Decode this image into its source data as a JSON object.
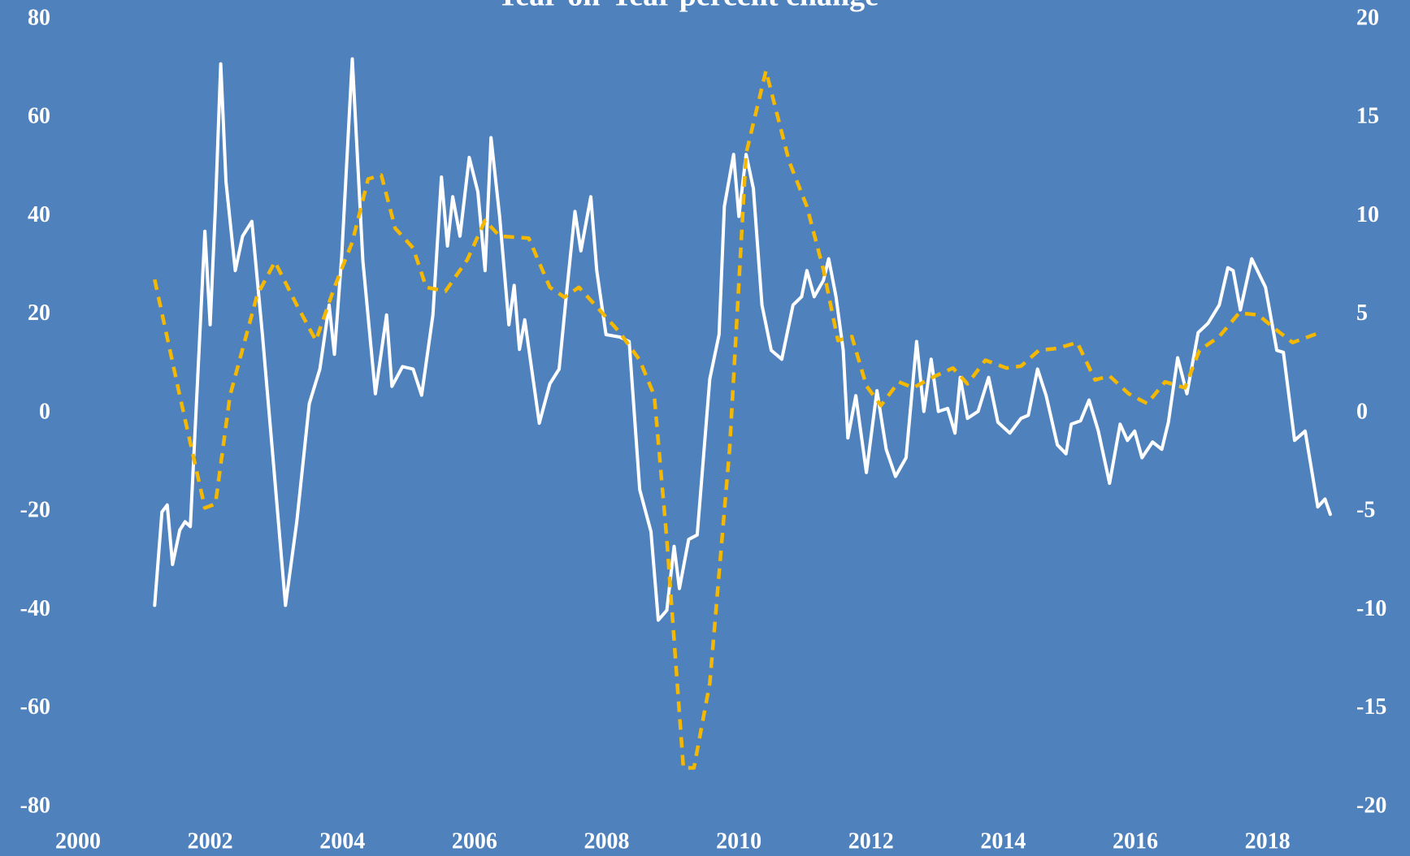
{
  "chart_data": {
    "type": "line",
    "title": "Year-on-Year percent change",
    "xlim": [
      2000,
      2019
    ],
    "xticks": [
      2000,
      2002,
      2004,
      2006,
      2008,
      2010,
      2012,
      2014,
      2016,
      2018
    ],
    "ylim": [
      -80,
      80
    ],
    "yticks": [
      -80,
      -60,
      -40,
      -20,
      0,
      20,
      40,
      60,
      80
    ],
    "y2lim": [
      -20,
      20
    ],
    "y2ticks": [
      -20,
      -15,
      -10,
      -5,
      0,
      5,
      10,
      15,
      20
    ],
    "grid": false,
    "series": [
      {
        "color": "#ffffff",
        "dash": false,
        "axis": "y",
        "x": [
          2001.16,
          2001.27,
          2001.35,
          2001.43,
          2001.54,
          2001.62,
          2001.7,
          2001.81,
          2001.92,
          2002.0,
          2002.08,
          2002.16,
          2002.24,
          2002.38,
          2002.49,
          2002.63,
          2002.79,
          2002.95,
          2003.14,
          2003.31,
          2003.5,
          2003.66,
          2003.8,
          2003.88,
          2003.99,
          2004.15,
          2004.31,
          2004.5,
          2004.67,
          2004.75,
          2004.91,
          2005.07,
          2005.2,
          2005.37,
          2005.5,
          2005.59,
          2005.67,
          2005.78,
          2005.92,
          2006.05,
          2006.16,
          2006.25,
          2006.38,
          2006.52,
          2006.6,
          2006.68,
          2006.76,
          2006.98,
          2007.14,
          2007.28,
          2007.39,
          2007.52,
          2007.61,
          2007.76,
          2007.85,
          2007.99,
          2008.2,
          2008.34,
          2008.5,
          2008.67,
          2008.78,
          2008.91,
          2009.02,
          2009.1,
          2009.24,
          2009.37,
          2009.56,
          2009.7,
          2009.78,
          2009.92,
          2010.0,
          2010.11,
          2010.22,
          2010.35,
          2010.49,
          2010.65,
          2010.82,
          2010.95,
          2011.03,
          2011.14,
          2011.28,
          2011.36,
          2011.47,
          2011.58,
          2011.65,
          2011.77,
          2011.93,
          2012.09,
          2012.23,
          2012.37,
          2012.53,
          2012.69,
          2012.8,
          2012.91,
          2013.02,
          2013.16,
          2013.27,
          2013.35,
          2013.46,
          2013.62,
          2013.78,
          2013.92,
          2014.1,
          2014.27,
          2014.38,
          2014.52,
          2014.65,
          2014.82,
          2014.95,
          2015.03,
          2015.17,
          2015.3,
          2015.44,
          2015.61,
          2015.77,
          2015.88,
          2015.99,
          2016.1,
          2016.26,
          2016.4,
          2016.5,
          2016.64,
          2016.78,
          2016.95,
          2017.1,
          2017.27,
          2017.4,
          2017.48,
          2017.59,
          2017.76,
          2017.97,
          2018.14,
          2018.24,
          2018.41,
          2018.57,
          2018.76,
          2018.87,
          2018.95
        ],
        "values": [
          -39,
          -20,
          -18.6,
          -30.7,
          -23.7,
          -22,
          -23,
          7,
          37,
          18,
          42,
          71,
          47,
          29,
          36,
          39,
          16,
          -9,
          -39,
          -22,
          2,
          9,
          22,
          12,
          32,
          72,
          31,
          4,
          20,
          5.5,
          9.5,
          9,
          3.7,
          20,
          48,
          34,
          44,
          36,
          52,
          45,
          29,
          56,
          40,
          18,
          26,
          13,
          19,
          -2,
          6,
          9,
          24,
          41,
          33,
          44,
          29,
          16,
          15.5,
          14.6,
          -15.5,
          -24,
          -42,
          -40,
          -27,
          -35.6,
          -25.6,
          -24.7,
          7,
          16,
          42,
          52.6,
          40,
          52.6,
          45.7,
          22,
          12.8,
          11,
          22,
          23.7,
          29,
          23.7,
          27,
          31.4,
          23.7,
          12.8,
          -5,
          3.6,
          -12,
          4.6,
          -7.3,
          -12.8,
          -9,
          14.6,
          0.4,
          11,
          0.4,
          1,
          -4,
          7.3,
          -1,
          0.4,
          7.3,
          -1.8,
          -4,
          -1,
          -0.4,
          9,
          3.6,
          -6.4,
          -8.2,
          -2.2,
          -1.5,
          2.7,
          -3.6,
          -14.2,
          -2.2,
          -5.5,
          -3.6,
          -9,
          -5.8,
          -7.3,
          -1.8,
          11.3,
          4,
          16.4,
          18.3,
          22,
          29.6,
          29,
          21,
          31.4,
          25.6,
          12.8,
          12.4,
          -5.5,
          -3.6,
          -19,
          -17.4,
          -20.5
        ]
      },
      {
        "color": "#f5b800",
        "dash": true,
        "axis": "y2",
        "x": [
          2001.16,
          2001.54,
          2001.92,
          2002.08,
          2002.3,
          2002.71,
          2002.98,
          2003.31,
          2003.6,
          2003.88,
          2004.15,
          2004.39,
          2004.59,
          2004.8,
          2005.07,
          2005.27,
          2005.56,
          2005.89,
          2006.16,
          2006.38,
          2006.82,
          2007.14,
          2007.36,
          2007.58,
          2007.88,
          2008.2,
          2008.5,
          2008.72,
          2008.91,
          2009.16,
          2009.32,
          2009.56,
          2009.86,
          2010.11,
          2010.41,
          2010.76,
          2011.03,
          2011.28,
          2011.5,
          2011.71,
          2011.93,
          2012.15,
          2012.42,
          2012.64,
          2012.91,
          2013.24,
          2013.46,
          2013.73,
          2014.05,
          2014.27,
          2014.54,
          2014.82,
          2015.12,
          2015.39,
          2015.61,
          2015.9,
          2016.18,
          2016.45,
          2016.75,
          2016.97,
          2017.27,
          2017.57,
          2017.86,
          2018.11,
          2018.38,
          2018.79
        ],
        "values": [
          6.8,
          0.9,
          -4.8,
          -4.6,
          0.9,
          6,
          7.7,
          5.5,
          3.7,
          6.4,
          8.7,
          11.9,
          12.1,
          9.4,
          8.4,
          6.4,
          6.2,
          7.8,
          9.8,
          9,
          8.9,
          6.4,
          5.9,
          6.4,
          5.3,
          4.1,
          2.7,
          0.9,
          -6.4,
          -18,
          -18,
          -13.7,
          -1.8,
          13.2,
          17.4,
          12.8,
          10.5,
          7.3,
          3.7,
          3.9,
          1.4,
          0.4,
          1.6,
          1.3,
          1.8,
          2.3,
          1.5,
          2.7,
          2.3,
          2.4,
          3.2,
          3.3,
          3.6,
          1.7,
          1.9,
          1,
          0.5,
          1.6,
          1.3,
          3.2,
          3.9,
          5.1,
          5,
          4.3,
          3.6,
          4.1
        ]
      }
    ]
  }
}
